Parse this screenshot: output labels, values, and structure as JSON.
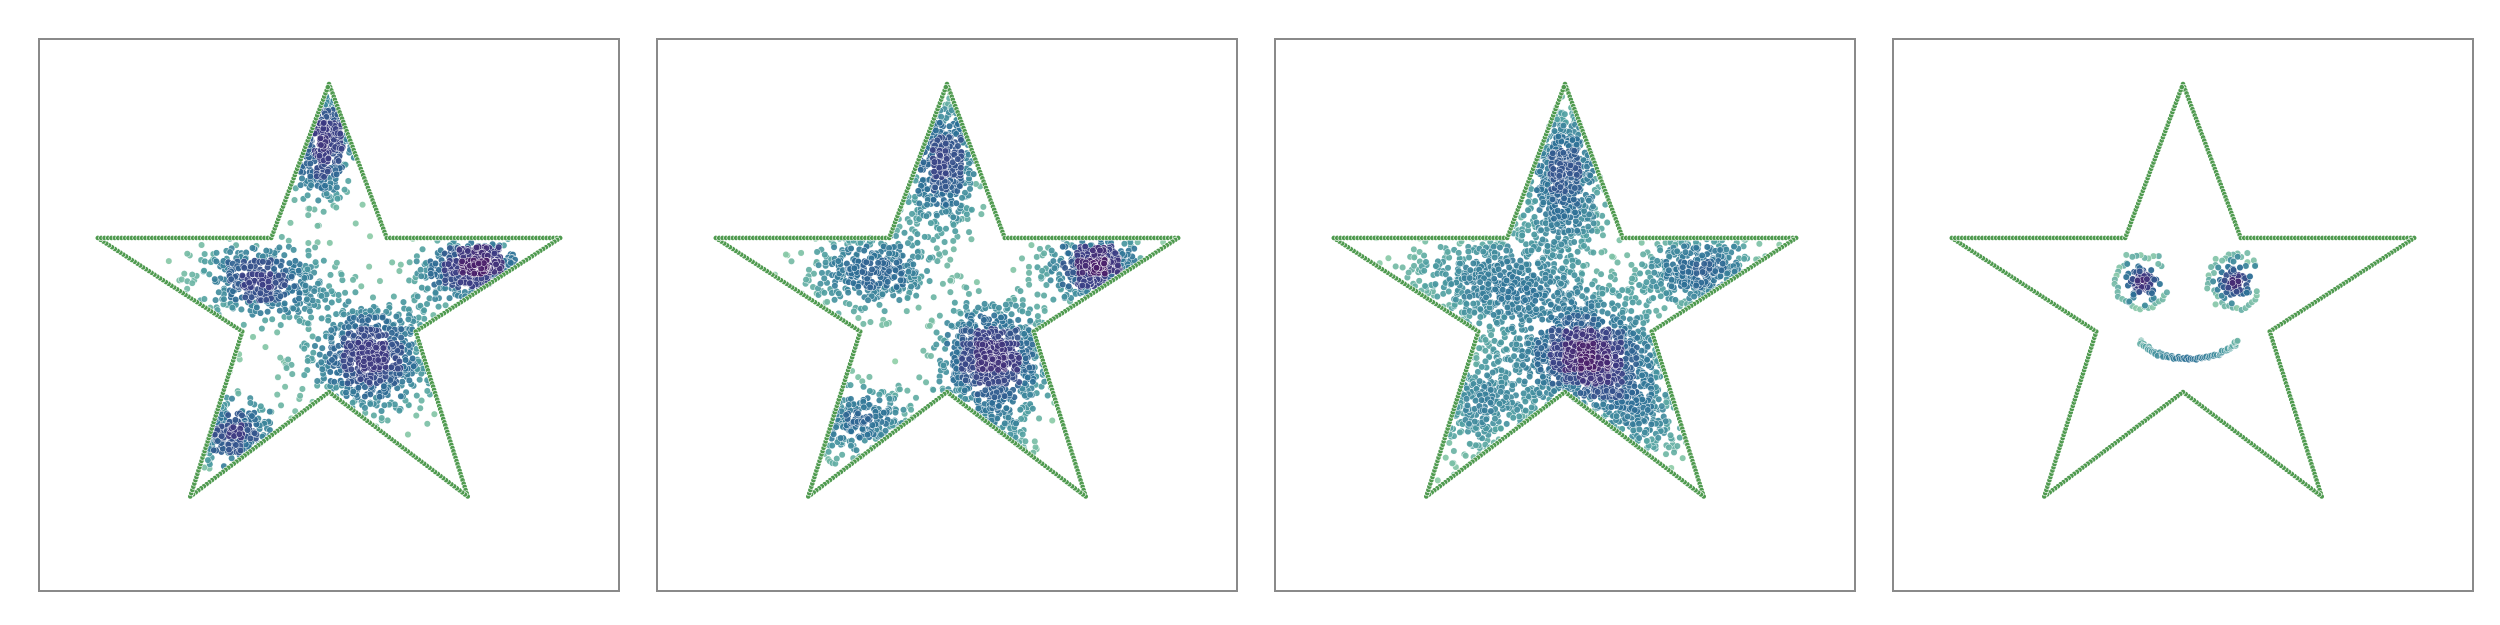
{
  "chart_data": [
    {
      "type": "scatter",
      "variant": "uniform-ish fill, unseen-region gaps",
      "xlim": [
        0,
        1
      ],
      "ylim": [
        0,
        1
      ],
      "outline": {
        "color": "#4f9a4f",
        "points": [
          [
            0.5,
            0.92
          ],
          [
            0.6,
            0.64
          ],
          [
            0.9,
            0.64
          ],
          [
            0.65,
            0.47
          ],
          [
            0.74,
            0.17
          ],
          [
            0.5,
            0.36
          ],
          [
            0.26,
            0.17
          ],
          [
            0.35,
            0.47
          ],
          [
            0.1,
            0.64
          ],
          [
            0.4,
            0.64
          ]
        ]
      },
      "clusters": [
        {
          "center": [
            0.49,
            0.82
          ],
          "spread": [
            0.025,
            0.06
          ],
          "n": 350
        },
        {
          "center": [
            0.38,
            0.56
          ],
          "spread": [
            0.06,
            0.035
          ],
          "n": 420
        },
        {
          "center": [
            0.57,
            0.42
          ],
          "spread": [
            0.06,
            0.055
          ],
          "n": 650
        },
        {
          "center": [
            0.74,
            0.58
          ],
          "spread": [
            0.05,
            0.03
          ],
          "n": 260
        },
        {
          "center": [
            0.77,
            0.6
          ],
          "spread": [
            0.025,
            0.014
          ],
          "n": 140
        },
        {
          "center": [
            0.31,
            0.29
          ],
          "spread": [
            0.05,
            0.03
          ],
          "n": 230
        }
      ],
      "colormap": [
        "#95d2a8",
        "#4f9fa2",
        "#2c6f96",
        "#3b3d84",
        "#4a1f6a"
      ],
      "grid": false,
      "legend": "none"
    },
    {
      "type": "scatter",
      "variant": "partial fill",
      "xlim": [
        0,
        1
      ],
      "ylim": [
        0,
        1
      ],
      "outline": {
        "color": "#4f9a4f",
        "points": [
          [
            0.5,
            0.92
          ],
          [
            0.6,
            0.64
          ],
          [
            0.9,
            0.64
          ],
          [
            0.65,
            0.47
          ],
          [
            0.74,
            0.17
          ],
          [
            0.5,
            0.36
          ],
          [
            0.26,
            0.17
          ],
          [
            0.35,
            0.47
          ],
          [
            0.1,
            0.64
          ],
          [
            0.4,
            0.64
          ]
        ]
      },
      "clusters": [
        {
          "center": [
            0.49,
            0.78
          ],
          "spread": [
            0.03,
            0.07
          ],
          "n": 420
        },
        {
          "center": [
            0.37,
            0.58
          ],
          "spread": [
            0.06,
            0.04
          ],
          "n": 380
        },
        {
          "center": [
            0.58,
            0.42
          ],
          "spread": [
            0.05,
            0.05
          ],
          "n": 700
        },
        {
          "center": [
            0.75,
            0.58
          ],
          "spread": [
            0.05,
            0.03
          ],
          "n": 260
        },
        {
          "center": [
            0.77,
            0.6
          ],
          "spread": [
            0.02,
            0.014
          ],
          "n": 140
        },
        {
          "center": [
            0.35,
            0.3
          ],
          "spread": [
            0.05,
            0.035
          ],
          "n": 230
        },
        {
          "center": [
            0.55,
            0.26
          ],
          "spread": [
            0.04,
            0.04
          ],
          "n": 80
        }
      ],
      "colormap": [
        "#95d2a8",
        "#4f9fa2",
        "#2c6f96",
        "#3b3d84",
        "#4a1f6a"
      ],
      "grid": false,
      "legend": "none"
    },
    {
      "type": "scatter",
      "variant": "dense fill",
      "xlim": [
        0,
        1
      ],
      "ylim": [
        0,
        1
      ],
      "outline": {
        "color": "#4f9a4f",
        "points": [
          [
            0.5,
            0.92
          ],
          [
            0.6,
            0.64
          ],
          [
            0.9,
            0.64
          ],
          [
            0.65,
            0.47
          ],
          [
            0.74,
            0.17
          ],
          [
            0.5,
            0.36
          ],
          [
            0.26,
            0.17
          ],
          [
            0.35,
            0.47
          ],
          [
            0.1,
            0.64
          ],
          [
            0.4,
            0.64
          ]
        ]
      },
      "clusters": [
        {
          "center": [
            0.5,
            0.76
          ],
          "spread": [
            0.035,
            0.08
          ],
          "n": 560
        },
        {
          "center": [
            0.38,
            0.56
          ],
          "spread": [
            0.08,
            0.05
          ],
          "n": 560
        },
        {
          "center": [
            0.54,
            0.43
          ],
          "spread": [
            0.07,
            0.06
          ],
          "n": 900
        },
        {
          "center": [
            0.54,
            0.42
          ],
          "spread": [
            0.03,
            0.025
          ],
          "n": 220
        },
        {
          "center": [
            0.73,
            0.58
          ],
          "spread": [
            0.06,
            0.035
          ],
          "n": 380
        },
        {
          "center": [
            0.36,
            0.34
          ],
          "spread": [
            0.06,
            0.06
          ],
          "n": 300
        },
        {
          "center": [
            0.62,
            0.3
          ],
          "spread": [
            0.05,
            0.06
          ],
          "n": 240
        }
      ],
      "colormap": [
        "#95d2a8",
        "#4f9fa2",
        "#2c6f96",
        "#3b3d84",
        "#4a1f6a"
      ],
      "grid": false,
      "legend": "none"
    },
    {
      "type": "scatter",
      "variant": "smiley",
      "xlim": [
        0,
        1
      ],
      "ylim": [
        0,
        1
      ],
      "outline": {
        "color": "#4f9a4f",
        "points": [
          [
            0.5,
            0.92
          ],
          [
            0.6,
            0.64
          ],
          [
            0.9,
            0.64
          ],
          [
            0.65,
            0.47
          ],
          [
            0.74,
            0.17
          ],
          [
            0.5,
            0.36
          ],
          [
            0.26,
            0.17
          ],
          [
            0.35,
            0.47
          ],
          [
            0.1,
            0.64
          ],
          [
            0.4,
            0.64
          ]
        ]
      },
      "eyes": [
        {
          "center": [
            0.43,
            0.56
          ],
          "ring_radius": 0.045,
          "core_spread": 0.014,
          "n": 90
        },
        {
          "center": [
            0.59,
            0.56
          ],
          "ring_radius": 0.045,
          "core_spread": 0.014,
          "n": 90
        }
      ],
      "smile": {
        "center": [
          0.51,
          0.47
        ],
        "radius": 0.09,
        "angle_from": 200,
        "angle_to": 340
      },
      "colormap": [
        "#95d2a8",
        "#4f9fa2",
        "#2c6f96",
        "#3b3d84",
        "#4a1f6a"
      ],
      "grid": false,
      "legend": "none"
    }
  ]
}
